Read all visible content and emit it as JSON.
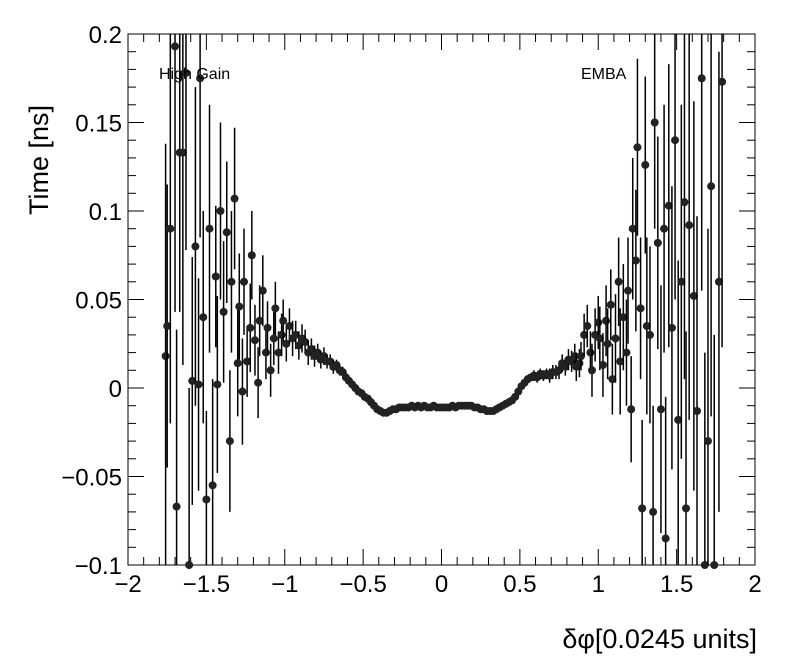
{
  "chart_data": {
    "type": "scatter",
    "title": "",
    "xlabel": "δφ[0.0245 units]",
    "ylabel": "Time [ns]",
    "xlim": [
      -2,
      2
    ],
    "ylim": [
      -0.1,
      0.2
    ],
    "x_ticks": [
      -2,
      -1.5,
      -1,
      -0.5,
      0,
      0.5,
      1,
      1.5,
      2
    ],
    "x_tick_labels": [
      "−2",
      "−1.5",
      "−1",
      "−0.5",
      "0",
      "0.5",
      "1",
      "1.5",
      "2"
    ],
    "y_ticks": [
      -0.1,
      -0.05,
      0,
      0.05,
      0.1,
      0.15,
      0.2
    ],
    "y_tick_labels": [
      "−0.1",
      "−0.05",
      "0",
      "0.05",
      "0.1",
      "0.15",
      "0.2"
    ],
    "grid": false,
    "annotations": [
      "High Gain",
      "EMBA"
    ],
    "marker_color": "#222222",
    "series": [
      {
        "points": [
          [
            -1.76,
            0.018,
            0.12
          ],
          [
            -1.75,
            0.035,
            0.08
          ],
          [
            -1.73,
            0.09,
            0.11
          ],
          [
            -1.7,
            0.193,
            0.15
          ],
          [
            -1.69,
            -0.067,
            0.1
          ],
          [
            -1.67,
            0.133,
            0.09
          ],
          [
            -1.65,
            0.133,
            0.12
          ],
          [
            -1.63,
            0.178,
            0.1
          ],
          [
            -1.61,
            -0.1,
            0.1
          ],
          [
            -1.59,
            0.004,
            0.07
          ],
          [
            -1.57,
            0.08,
            0.09
          ],
          [
            -1.55,
            0.002,
            0.06
          ],
          [
            -1.54,
            0.175,
            0.09
          ],
          [
            -1.52,
            0.04,
            0.06
          ],
          [
            -1.5,
            -0.063,
            0.05
          ],
          [
            -1.48,
            0.09,
            0.07
          ],
          [
            -1.46,
            -0.055,
            0.06
          ],
          [
            -1.44,
            0.063,
            0.04
          ],
          [
            -1.43,
            0.002,
            0.05
          ],
          [
            -1.41,
            0.1,
            0.05
          ],
          [
            -1.39,
            0.043,
            0.04
          ],
          [
            -1.37,
            0.088,
            0.04
          ],
          [
            -1.35,
            -0.03,
            0.04
          ],
          [
            -1.34,
            0.06,
            0.04
          ],
          [
            -1.32,
            0.107,
            0.04
          ],
          [
            -1.3,
            0.014,
            0.03
          ],
          [
            -1.29,
            0.046,
            0.03
          ],
          [
            -1.27,
            -0.002,
            0.03
          ],
          [
            -1.26,
            0.06,
            0.03
          ],
          [
            -1.24,
            0.015,
            0.02
          ],
          [
            -1.22,
            0.034,
            0.025
          ],
          [
            -1.21,
            0.075,
            0.025
          ],
          [
            -1.19,
            0.027,
            0.02
          ],
          [
            -1.17,
            0.003,
            0.02
          ],
          [
            -1.16,
            0.038,
            0.02
          ],
          [
            -1.14,
            0.055,
            0.02
          ],
          [
            -1.12,
            0.02,
            0.015
          ],
          [
            -1.11,
            0.034,
            0.015
          ],
          [
            -1.09,
            0.01,
            0.015
          ],
          [
            -1.07,
            0.028,
            0.015
          ],
          [
            -1.06,
            0.045,
            0.015
          ],
          [
            -1.04,
            0.02,
            0.012
          ],
          [
            -1.02,
            0.03,
            0.012
          ],
          [
            -1.01,
            0.038,
            0.012
          ],
          [
            -0.99,
            0.025,
            0.01
          ],
          [
            -0.97,
            0.035,
            0.01
          ],
          [
            -0.95,
            0.028,
            0.01
          ],
          [
            -0.93,
            0.03,
            0.008
          ],
          [
            -0.91,
            0.024,
            0.008
          ],
          [
            -0.89,
            0.028,
            0.008
          ],
          [
            -0.87,
            0.026,
            0.007
          ],
          [
            -0.85,
            0.02,
            0.007
          ],
          [
            -0.83,
            0.022,
            0.006
          ],
          [
            -0.81,
            0.018,
            0.006
          ],
          [
            -0.79,
            0.02,
            0.005
          ],
          [
            -0.77,
            0.016,
            0.005
          ],
          [
            -0.75,
            0.018,
            0.005
          ],
          [
            -0.73,
            0.015,
            0.004
          ],
          [
            -0.71,
            0.015,
            0.004
          ],
          [
            -0.69,
            0.012,
            0.004
          ],
          [
            -0.67,
            0.013,
            0.003
          ],
          [
            -0.65,
            0.01,
            0.003
          ],
          [
            -0.63,
            0.009,
            0.003
          ],
          [
            -0.61,
            0.006,
            0.003
          ],
          [
            -0.59,
            0.004,
            0.002
          ],
          [
            -0.57,
            0.002,
            0.002
          ],
          [
            -0.55,
            0.0,
            0.002
          ],
          [
            -0.53,
            -0.002,
            0.002
          ],
          [
            -0.51,
            -0.003,
            0.002
          ],
          [
            -0.49,
            -0.005,
            0.002
          ],
          [
            -0.47,
            -0.006,
            0.002
          ],
          [
            -0.45,
            -0.008,
            0.002
          ],
          [
            -0.43,
            -0.01,
            0.002
          ],
          [
            -0.41,
            -0.012,
            0.002
          ],
          [
            -0.39,
            -0.013,
            0.002
          ],
          [
            -0.37,
            -0.014,
            0.002
          ],
          [
            -0.35,
            -0.014,
            0.002
          ],
          [
            -0.33,
            -0.013,
            0.002
          ],
          [
            -0.31,
            -0.012,
            0.002
          ],
          [
            -0.29,
            -0.012,
            0.002
          ],
          [
            -0.27,
            -0.011,
            0.002
          ],
          [
            -0.25,
            -0.011,
            0.002
          ],
          [
            -0.23,
            -0.011,
            0.002
          ],
          [
            -0.21,
            -0.011,
            0.002
          ],
          [
            -0.19,
            -0.01,
            0.002
          ],
          [
            -0.17,
            -0.011,
            0.002
          ],
          [
            -0.15,
            -0.01,
            0.002
          ],
          [
            -0.13,
            -0.011,
            0.002
          ],
          [
            -0.11,
            -0.01,
            0.002
          ],
          [
            -0.09,
            -0.011,
            0.002
          ],
          [
            -0.07,
            -0.011,
            0.002
          ],
          [
            -0.05,
            -0.01,
            0.002
          ],
          [
            -0.03,
            -0.011,
            0.002
          ],
          [
            -0.01,
            -0.011,
            0.002
          ],
          [
            0.01,
            -0.011,
            0.002
          ],
          [
            0.03,
            -0.011,
            0.002
          ],
          [
            0.05,
            -0.011,
            0.002
          ],
          [
            0.07,
            -0.01,
            0.002
          ],
          [
            0.09,
            -0.011,
            0.002
          ],
          [
            0.11,
            -0.01,
            0.002
          ],
          [
            0.13,
            -0.01,
            0.002
          ],
          [
            0.15,
            -0.01,
            0.002
          ],
          [
            0.17,
            -0.01,
            0.002
          ],
          [
            0.19,
            -0.01,
            0.002
          ],
          [
            0.21,
            -0.011,
            0.002
          ],
          [
            0.23,
            -0.011,
            0.002
          ],
          [
            0.25,
            -0.012,
            0.002
          ],
          [
            0.27,
            -0.012,
            0.002
          ],
          [
            0.29,
            -0.013,
            0.002
          ],
          [
            0.31,
            -0.013,
            0.002
          ],
          [
            0.33,
            -0.013,
            0.002
          ],
          [
            0.35,
            -0.012,
            0.002
          ],
          [
            0.37,
            -0.011,
            0.002
          ],
          [
            0.39,
            -0.01,
            0.002
          ],
          [
            0.41,
            -0.009,
            0.002
          ],
          [
            0.43,
            -0.008,
            0.002
          ],
          [
            0.45,
            -0.007,
            0.002
          ],
          [
            0.47,
            -0.005,
            0.002
          ],
          [
            0.49,
            -0.002,
            0.002
          ],
          [
            0.51,
            0.001,
            0.002
          ],
          [
            0.53,
            0.003,
            0.002
          ],
          [
            0.55,
            0.005,
            0.002
          ],
          [
            0.57,
            0.006,
            0.002
          ],
          [
            0.59,
            0.007,
            0.003
          ],
          [
            0.61,
            0.006,
            0.003
          ],
          [
            0.63,
            0.008,
            0.003
          ],
          [
            0.65,
            0.007,
            0.003
          ],
          [
            0.67,
            0.008,
            0.003
          ],
          [
            0.69,
            0.007,
            0.004
          ],
          [
            0.71,
            0.009,
            0.004
          ],
          [
            0.73,
            0.009,
            0.004
          ],
          [
            0.75,
            0.01,
            0.005
          ],
          [
            0.77,
            0.014,
            0.005
          ],
          [
            0.79,
            0.012,
            0.005
          ],
          [
            0.81,
            0.016,
            0.006
          ],
          [
            0.83,
            0.015,
            0.006
          ],
          [
            0.85,
            0.018,
            0.007
          ],
          [
            0.86,
            0.012,
            0.008
          ],
          [
            0.88,
            0.014,
            0.008
          ],
          [
            0.89,
            0.018,
            0.008
          ],
          [
            0.91,
            0.03,
            0.012
          ],
          [
            0.93,
            0.035,
            0.012
          ],
          [
            0.95,
            0.02,
            0.012
          ],
          [
            0.96,
            0.01,
            0.015
          ],
          [
            0.98,
            0.03,
            0.015
          ],
          [
            1.0,
            0.037,
            0.015
          ],
          [
            1.01,
            0.028,
            0.018
          ],
          [
            1.03,
            0.013,
            0.018
          ],
          [
            1.05,
            0.038,
            0.02
          ],
          [
            1.06,
            0.025,
            0.02
          ],
          [
            1.08,
            0.047,
            0.02
          ],
          [
            1.09,
            0.005,
            0.02
          ],
          [
            1.11,
            0.028,
            0.025
          ],
          [
            1.13,
            0.06,
            0.025
          ],
          [
            1.14,
            0.015,
            0.03
          ],
          [
            1.16,
            0.04,
            0.03
          ],
          [
            1.18,
            0.02,
            0.03
          ],
          [
            1.19,
            0.055,
            0.03
          ],
          [
            1.21,
            -0.012,
            0.03
          ],
          [
            1.22,
            0.09,
            0.04
          ],
          [
            1.24,
            0.072,
            0.04
          ],
          [
            1.25,
            0.136,
            0.05
          ],
          [
            1.27,
            0.045,
            0.04
          ],
          [
            1.28,
            -0.068,
            0.05
          ],
          [
            1.3,
            0.126,
            0.05
          ],
          [
            1.31,
            0.035,
            0.05
          ],
          [
            1.33,
            0.03,
            0.05
          ],
          [
            1.35,
            -0.07,
            0.06
          ],
          [
            1.36,
            0.15,
            0.06
          ],
          [
            1.38,
            0.082,
            0.06
          ],
          [
            1.4,
            -0.012,
            0.07
          ],
          [
            1.42,
            0.09,
            0.07
          ],
          [
            1.43,
            -0.085,
            0.08
          ],
          [
            1.45,
            0.103,
            0.08
          ],
          [
            1.47,
            0.034,
            0.08
          ],
          [
            1.49,
            0.14,
            0.09
          ],
          [
            1.51,
            -0.018,
            0.09
          ],
          [
            1.53,
            0.06,
            0.1
          ],
          [
            1.55,
            0.105,
            0.1
          ],
          [
            1.56,
            -0.068,
            0.1
          ],
          [
            1.58,
            0.092,
            0.11
          ],
          [
            1.61,
            0.052,
            0.11
          ],
          [
            1.63,
            -0.013,
            0.11
          ],
          [
            1.66,
            0.175,
            0.12
          ],
          [
            1.68,
            -0.1,
            0.12
          ],
          [
            1.7,
            -0.03,
            0.12
          ],
          [
            1.72,
            0.114,
            0.13
          ],
          [
            1.74,
            -0.1,
            0.13
          ],
          [
            1.77,
            0.06,
            0.13
          ],
          [
            1.79,
            0.173,
            0.15
          ]
        ]
      }
    ]
  }
}
